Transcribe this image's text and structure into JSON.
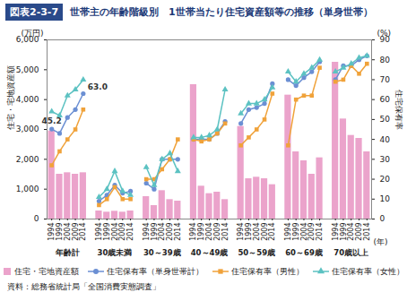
{
  "chart_data": {
    "type": "bar",
    "figure_label": "図表2-3-7",
    "title": "世帯主の年齢階級別　1世帯当たり住宅資産額等の推移（単身世帯）",
    "ylabel": "住宅・宅地資産額",
    "yunit": "(万円)",
    "y2label": "住宅保有率",
    "y2unit": "(%)",
    "xunit": "(年)",
    "source": "資料：総務省統計局「全国消費実態調査」",
    "groups": [
      "年齢計",
      "30歳未満",
      "30～39歳",
      "40～49歳",
      "50～59歳",
      "60～69歳",
      "70歳以上"
    ],
    "categories": [
      "1994",
      "1999",
      "2004",
      "2009",
      "2014",
      "1994",
      "1999",
      "2004",
      "2009",
      "2014",
      "1994",
      "1999",
      "2004",
      "2009",
      "2014",
      "1994",
      "1999",
      "2004",
      "2009",
      "2014",
      "1994",
      "1999",
      "2004",
      "2009",
      "2014",
      "1994",
      "1999",
      "2004",
      "2009",
      "2014",
      "1994",
      "1999",
      "2004",
      "2009",
      "2014"
    ],
    "ylim": [
      0,
      6000
    ],
    "yticks": [
      0,
      {
        "value": 1000,
        "label": "1,000"
      },
      {
        "value": 2000,
        "label": "2,000"
      },
      {
        "value": 3000,
        "label": "3,000"
      },
      {
        "value": 4000,
        "label": "4,000"
      },
      {
        "value": 5000,
        "label": "5,000"
      },
      {
        "value": 6000,
        "label": "6,000"
      }
    ],
    "y2lim": [
      0,
      90
    ],
    "y2ticks": [
      0,
      10,
      20,
      30,
      40,
      50,
      60,
      70,
      80,
      90
    ],
    "grid": false,
    "legend": "bottom",
    "series": [
      {
        "name": "住宅・宅地資産額",
        "type": "bar",
        "color": "#eba3cb",
        "values": [
          2950,
          1500,
          1550,
          1500,
          1550,
          270,
          230,
          260,
          230,
          270,
          750,
          450,
          950,
          650,
          600,
          4500,
          1100,
          850,
          900,
          650,
          3100,
          1350,
          1400,
          1350,
          1150,
          4150,
          2250,
          1950,
          1500,
          2050,
          5250,
          3350,
          2800,
          2700,
          2250
        ]
      },
      {
        "name": "住宅保有率（単身世帯計）",
        "type": "line",
        "axis": "y2",
        "color": "#6b8fd3",
        "marker": "circle",
        "values": [
          45.2,
          43,
          51,
          55,
          63,
          9,
          12,
          17,
          13,
          14,
          18,
          15,
          30,
          30,
          30,
          40,
          40,
          40,
          43,
          49,
          48,
          55,
          56,
          58,
          68,
          70,
          67,
          71,
          74,
          79,
          70,
          77,
          77,
          80,
          82
        ],
        "value_labels": [
          "45.2",
          null,
          null,
          null,
          "63.0",
          null,
          null,
          null,
          null,
          null,
          null,
          null,
          null,
          null,
          null,
          null,
          null,
          null,
          null,
          null,
          null,
          null,
          null,
          null,
          null,
          null,
          null,
          null,
          null,
          null,
          null,
          null,
          null,
          null,
          null
        ]
      },
      {
        "name": "住宅保有率（男性）",
        "type": "line",
        "axis": "y2",
        "color": "#f0a23a",
        "marker": "square",
        "values": [
          27,
          34,
          40,
          45,
          55,
          7,
          10,
          16,
          10,
          10,
          20,
          20,
          25,
          30,
          40,
          40,
          39,
          40,
          43,
          48,
          37,
          41,
          45,
          50,
          63,
          37,
          60,
          62,
          62,
          76,
          69,
          70,
          77,
          73,
          78
        ]
      },
      {
        "name": "住宅保有率（女性）",
        "type": "line",
        "axis": "y2",
        "color": "#5cc2c2",
        "marker": "triangle",
        "values": [
          54,
          52,
          62,
          65,
          70,
          11,
          15,
          24,
          14,
          12,
          26,
          17,
          30,
          33,
          24,
          41,
          41,
          42,
          45,
          65,
          53,
          58,
          58,
          60,
          66,
          74,
          69,
          73,
          76,
          80,
          74,
          76,
          78,
          81,
          82
        ]
      }
    ]
  }
}
